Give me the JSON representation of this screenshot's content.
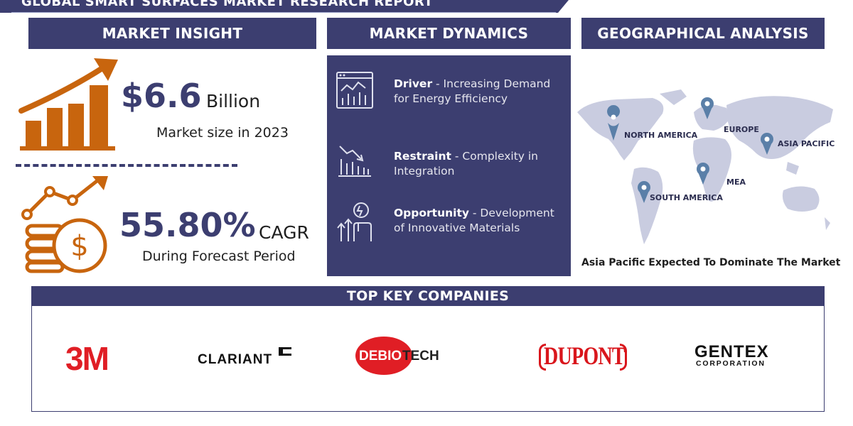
{
  "report_title": "GLOBAL SMART SURFACES MARKET RESEARCH REPORT",
  "sections": {
    "market_insight": "MARKET INSIGHT",
    "market_dynamics": "MARKET DYNAMICS",
    "geographical_analysis": "GEOGRAPHICAL ANALYSIS",
    "top_key_companies": "TOP KEY COMPANIES"
  },
  "market_insight": {
    "market_size_value": "$6.6",
    "market_size_unit": "Billion",
    "market_size_caption": "Market size in 2023",
    "cagr_value": "55.80%",
    "cagr_unit": "CAGR",
    "cagr_caption": "During Forecast Period"
  },
  "market_dynamics": {
    "driver": {
      "label": "Driver",
      "text": "- Increasing Demand for Energy Efficiency"
    },
    "restraint": {
      "label": "Restraint",
      "text": "- Complexity in Integration"
    },
    "opportunity": {
      "label": "Opportunity",
      "text": "- Development of Innovative Materials"
    }
  },
  "geography": {
    "regions": [
      "NORTH AMERICA",
      "EUROPE",
      "ASIA PACIFIC",
      "MEA",
      "SOUTH AMERICA"
    ],
    "footer": "Asia Pacific Expected To Dominate The Market"
  },
  "companies": {
    "logo_3m": "3M",
    "logo_clariant": "CLARIANT",
    "logo_debio_part1": "DEBIO",
    "logo_debio_part2": "TECH",
    "logo_dupont": "DUPONT",
    "logo_gentex": "GENTEX",
    "logo_gentex_sub": "CORPORATION"
  },
  "colors": {
    "navy": "#3c3e70",
    "orange": "#c8650e",
    "map_gray": "#c9cce0",
    "pin_blue": "#5a7fa8",
    "logo_red": "#e01e25"
  },
  "icons": [
    "growth-chart-icon",
    "coins-dollar-icon",
    "analytics-screen-icon",
    "declining-bars-icon",
    "innovation-bulb-icon",
    "location-pin-icon"
  ]
}
